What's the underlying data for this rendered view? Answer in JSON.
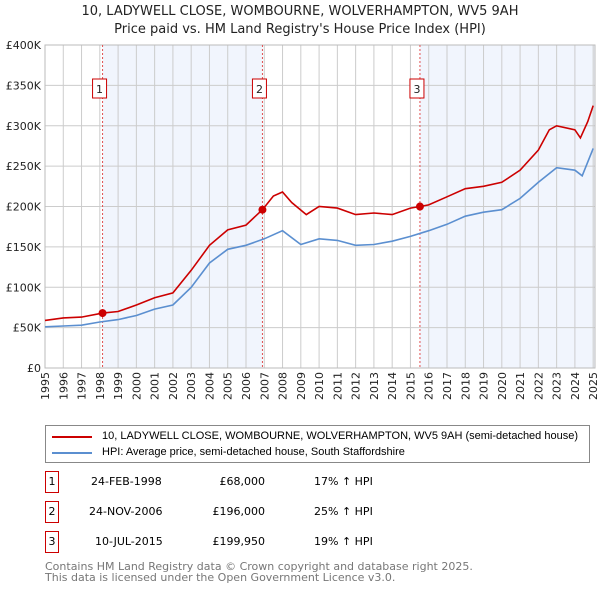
{
  "chart_data": {
    "type": "line",
    "title": "10, LADYWELL CLOSE, WOMBOURNE, WOLVERHAMPTON, WV5 9AH",
    "subtitle": "Price paid vs. HM Land Registry's House Price Index (HPI)",
    "xlim": [
      1995,
      2025.1
    ],
    "ylim": [
      0,
      400000
    ],
    "yticks": [
      0,
      50000,
      100000,
      150000,
      200000,
      250000,
      300000,
      350000,
      400000
    ],
    "ytick_labels": [
      "£0",
      "£50K",
      "£100K",
      "£150K",
      "£200K",
      "£250K",
      "£300K",
      "£350K",
      "£400K"
    ],
    "xticks": [
      1995,
      1996,
      1997,
      1998,
      1999,
      2000,
      2001,
      2002,
      2003,
      2004,
      2005,
      2006,
      2007,
      2008,
      2009,
      2010,
      2011,
      2012,
      2013,
      2014,
      2015,
      2016,
      2017,
      2018,
      2019,
      2020,
      2021,
      2022,
      2023,
      2024,
      2025
    ],
    "grid": true,
    "series": [
      {
        "name": "10, LADYWELL CLOSE, WOMBOURNE, WOLVERHAMPTON, WV5 9AH (semi-detached house)",
        "color": "#cc0000",
        "x": [
          1995,
          1996,
          1997,
          1998.15,
          1999,
          2000,
          2001,
          2002,
          2003,
          2004,
          2005,
          2006,
          2006.9,
          2007.5,
          2008,
          2008.5,
          2009.3,
          2010,
          2011,
          2012,
          2013,
          2014,
          2015,
          2015.52,
          2016,
          2017,
          2018,
          2019,
          2020,
          2021,
          2022,
          2022.6,
          2023,
          2024,
          2024.3,
          2024.7,
          2025
        ],
        "y": [
          59000,
          62000,
          63000,
          68000,
          70000,
          78000,
          87000,
          93000,
          121000,
          152000,
          171000,
          177000,
          196000,
          213000,
          218000,
          205000,
          190000,
          200000,
          198000,
          190000,
          192000,
          190000,
          198000,
          199950,
          202000,
          212000,
          222000,
          225000,
          230000,
          245000,
          270000,
          295000,
          300000,
          295000,
          285000,
          305000,
          325000
        ]
      },
      {
        "name": "HPI: Average price, semi-detached house, South Staffordshire",
        "color": "#5b8fd0",
        "x": [
          1995,
          1996,
          1997,
          1998,
          1999,
          2000,
          2001,
          2002,
          2003,
          2004,
          2005,
          2006,
          2007,
          2008,
          2009,
          2010,
          2011,
          2012,
          2013,
          2014,
          2015,
          2016,
          2017,
          2018,
          2019,
          2020,
          2021,
          2022,
          2023,
          2024,
          2024.4,
          2025
        ],
        "y": [
          51000,
          52000,
          53000,
          57000,
          60000,
          65000,
          73000,
          78000,
          100000,
          130000,
          147000,
          152000,
          160000,
          170000,
          153000,
          160000,
          158000,
          152000,
          153000,
          157000,
          163000,
          170000,
          178000,
          188000,
          193000,
          196000,
          210000,
          230000,
          248000,
          245000,
          238000,
          272000
        ]
      }
    ],
    "sales": [
      {
        "label": "1",
        "x": 1998.15,
        "price": 68000,
        "date": "24-FEB-1998",
        "price_text": "£68,000",
        "hpi": "17% ↑ HPI"
      },
      {
        "label": "2",
        "x": 2006.9,
        "price": 196000,
        "date": "24-NOV-2006",
        "price_text": "£196,000",
        "hpi": "25% ↑ HPI"
      },
      {
        "label": "3",
        "x": 2015.52,
        "price": 199950,
        "date": "10-JUL-2015",
        "price_text": "£199,950",
        "hpi": "19% ↑ HPI"
      }
    ],
    "legend_position": "bottom"
  },
  "footer": {
    "line1": "Contains HM Land Registry data © Crown copyright and database right 2025.",
    "line2": "This data is licensed under the Open Government Licence v3.0."
  }
}
